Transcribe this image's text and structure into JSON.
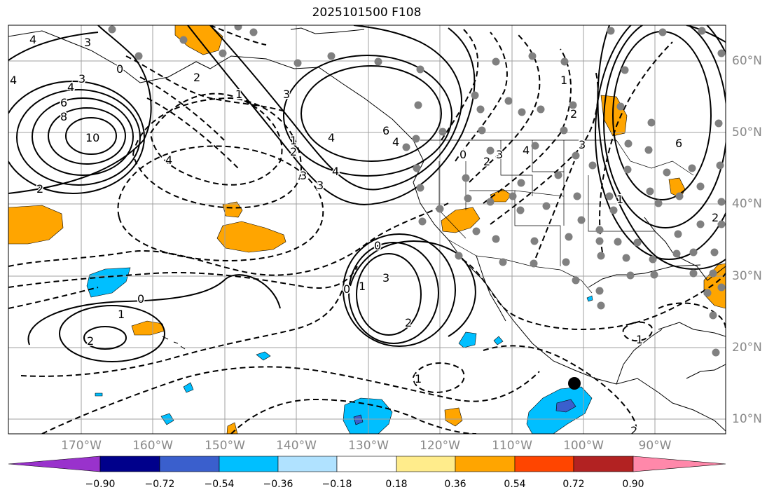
{
  "title": "2025101500 F108",
  "lon_labels": [
    "170°W",
    "160°W",
    "150°W",
    "140°W",
    "130°W",
    "120°W",
    "110°W",
    "100°W",
    "90°W"
  ],
  "lat_labels": [
    "60°N",
    "50°N",
    "40°N",
    "30°N",
    "20°N",
    "10°N"
  ],
  "colorbar": {
    "ticks": [
      "−0.90",
      "−0.72",
      "−0.54",
      "−0.36",
      "−0.18",
      "0.18",
      "0.36",
      "0.54",
      "0.72",
      "0.90"
    ],
    "colors": [
      "#9932cc",
      "#00008b",
      "#3a5fcd",
      "#00bfff",
      "#b0e2ff",
      "#ffffff",
      "#ffec8b",
      "#ffa500",
      "#ff4500",
      "#b22222",
      "#ff88aa"
    ]
  },
  "contour_labels": [
    "4",
    "3",
    "4",
    "6",
    "8",
    "10",
    "2",
    "0",
    "1",
    "2",
    "3",
    "4",
    "1",
    "2",
    "3",
    "4",
    "3",
    "4",
    "6",
    "4",
    "2",
    "3",
    "1",
    "2",
    "3",
    "4",
    "6",
    "0",
    "1",
    "2",
    "3",
    "2",
    "1",
    "0",
    "1",
    "2",
    "1",
    "0",
    "0",
    "1",
    "2",
    "3",
    "4"
  ],
  "highlight_point": "black-dot"
}
